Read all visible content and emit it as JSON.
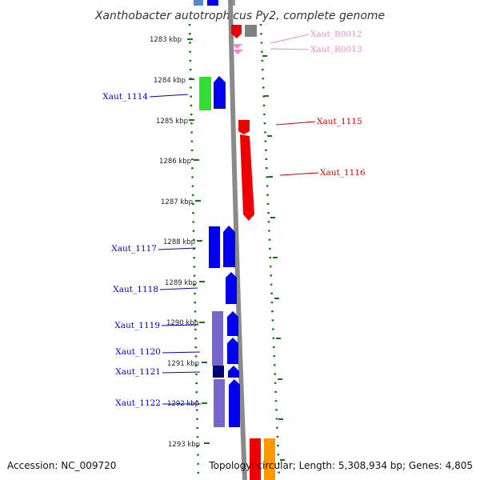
{
  "title": "Xanthobacter autotrophicus Py2, complete genome",
  "accession": "Accession: NC_009720",
  "topology": "Topology: circular; Length: 5,308,934 bp; Genes: 4,805",
  "ticks": [
    "1283 kbp",
    "1284 kbp",
    "1285 kbp",
    "1286 kbp",
    "1287 kbp",
    "1288 kbp",
    "1289 kbp",
    "1290 kbp",
    "1291 kbp",
    "1292 kbp",
    "1293 kbp"
  ],
  "genes_left": [
    "Xaut_1114",
    "Xaut_1117",
    "Xaut_1118",
    "Xaut_1119",
    "Xaut_1120",
    "Xaut_1121",
    "Xaut_1122"
  ],
  "genes_right": [
    "Xaut_R0012",
    "Xaut_R0013",
    "Xaut_1115",
    "Xaut_1116"
  ],
  "colors": {
    "forward": "#0000ee",
    "reverse": "#ee0000",
    "rna": "#ee88cc",
    "green": "#33dd33",
    "lavender": "#7766cc",
    "navy": "#000077",
    "gray": "#808080",
    "orange": "#ff9900",
    "tick": "#117711"
  }
}
